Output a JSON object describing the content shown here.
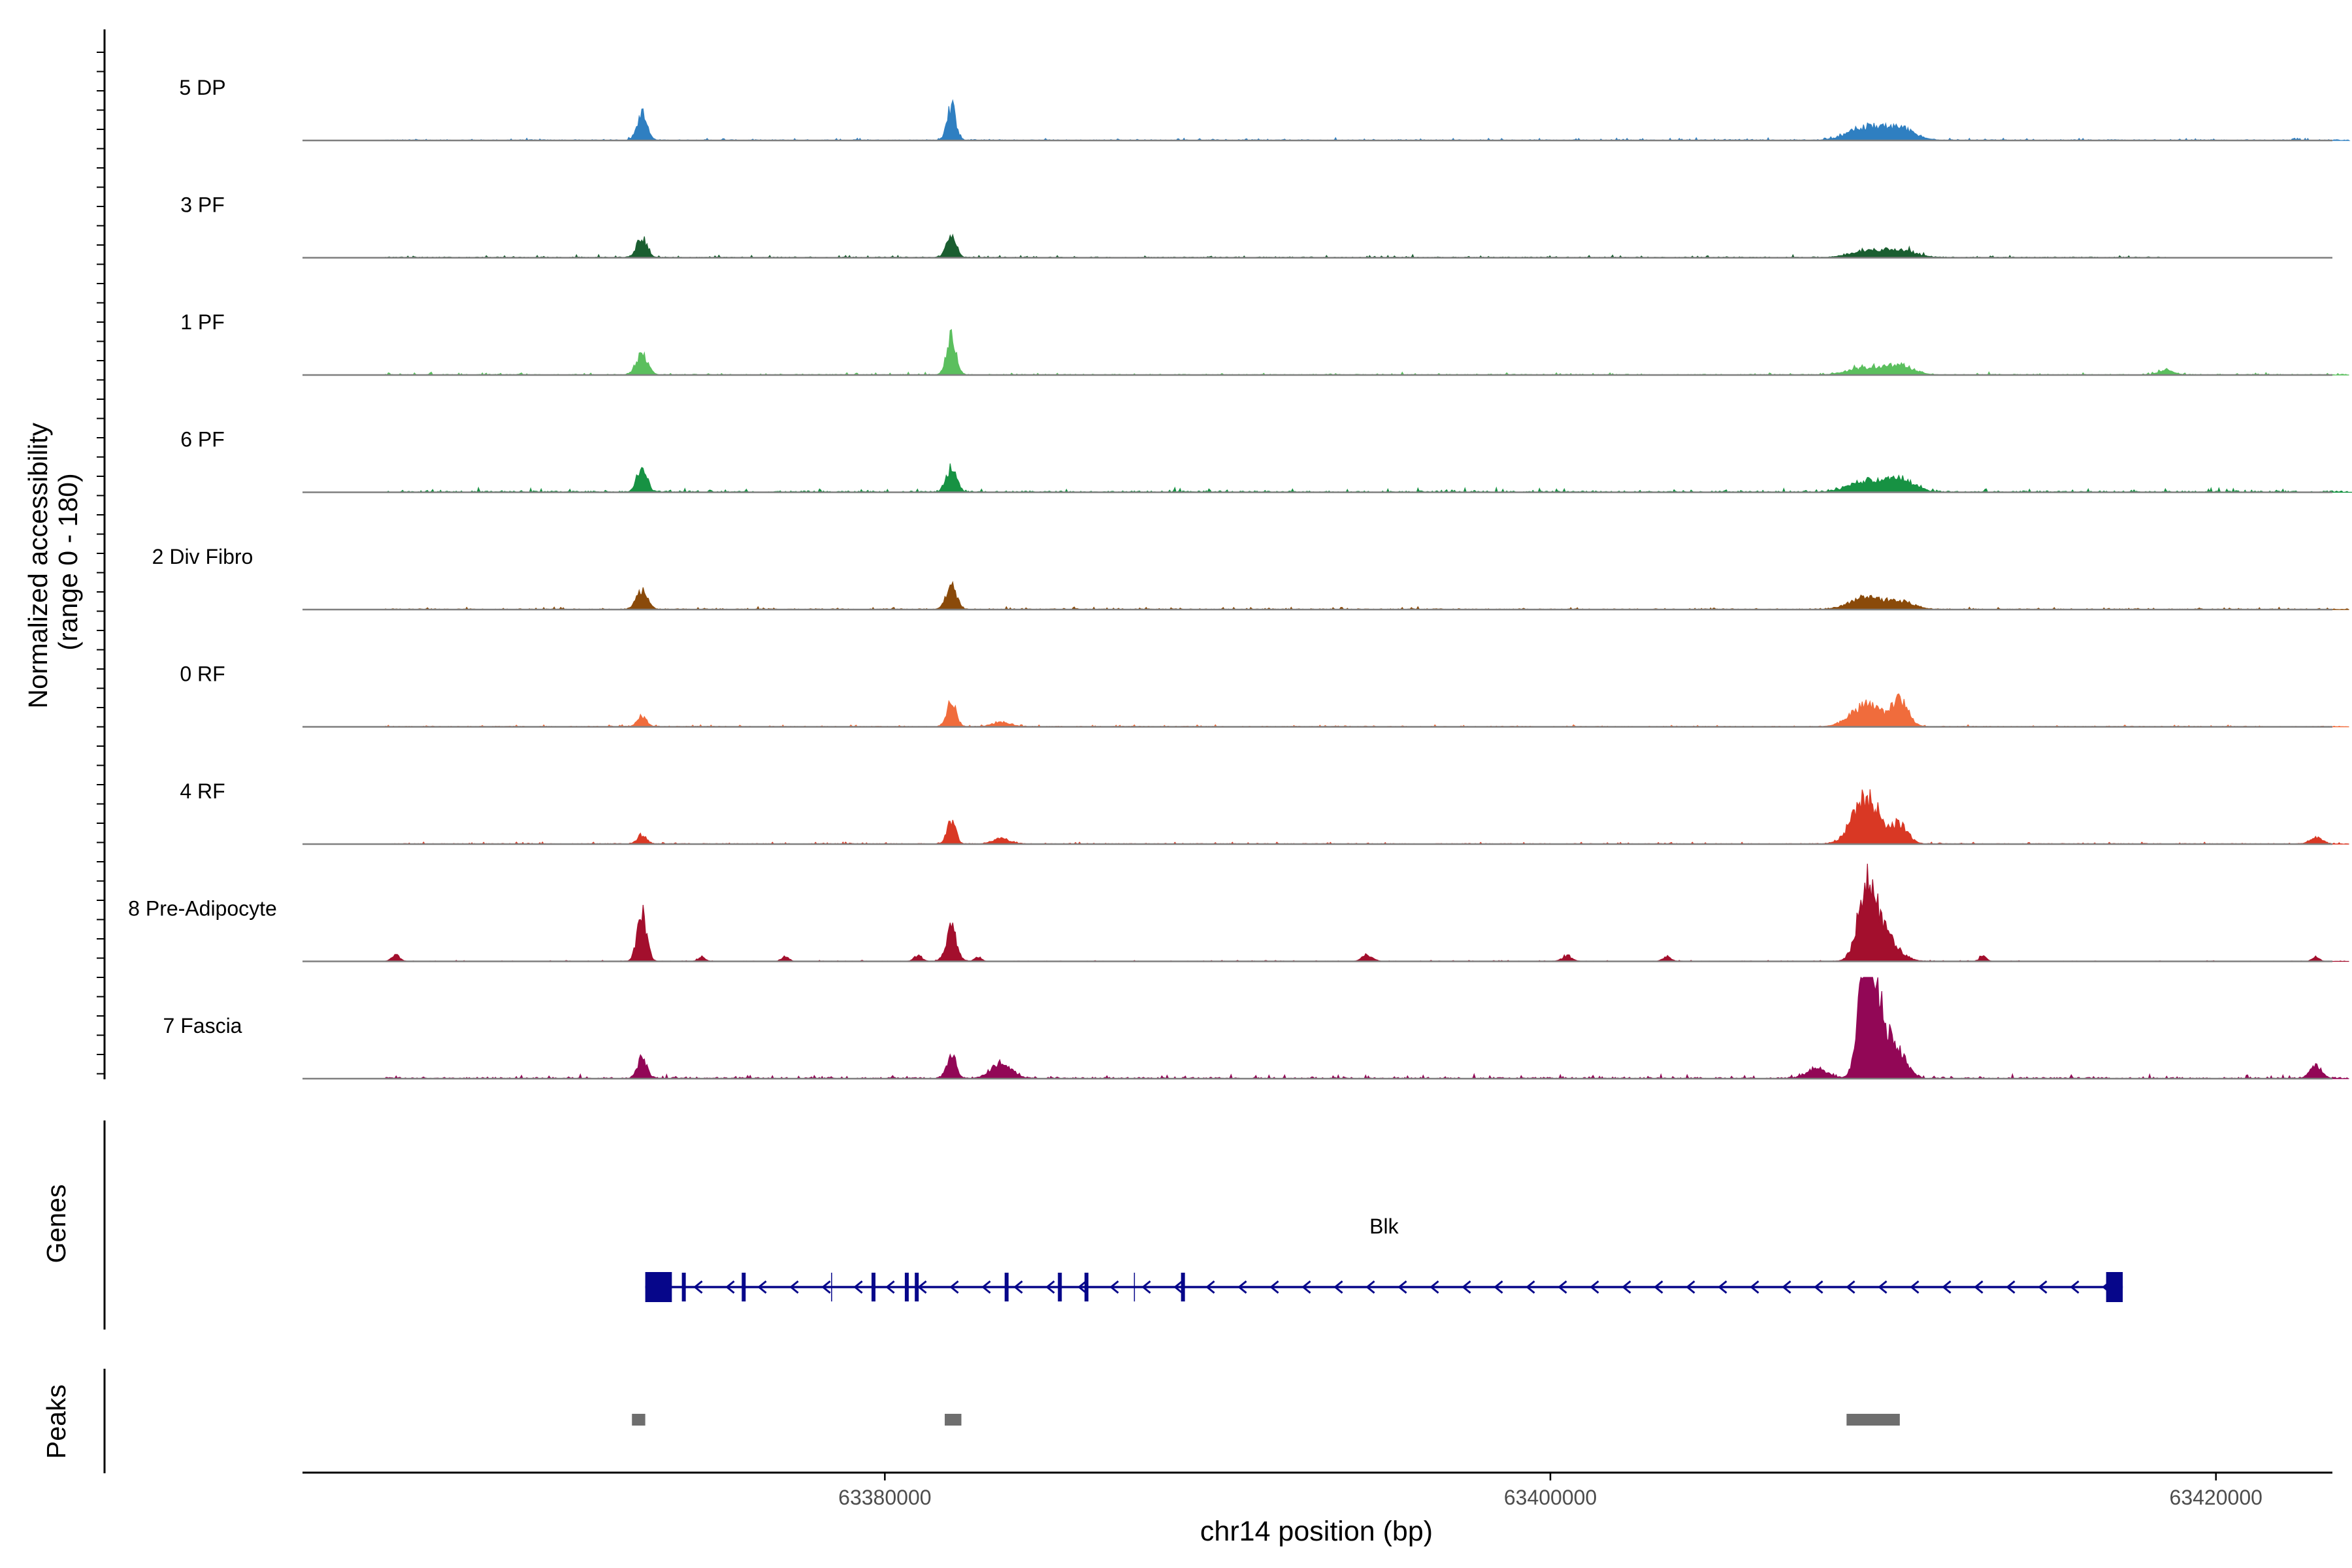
{
  "chart_data": {
    "type": "area",
    "title": "",
    "ylabel_line1": "Normalized accessibility",
    "ylabel_line2": "(range 0 - 180)",
    "ylim": [
      0,
      180
    ],
    "xlabel": "chr14 position (bp)",
    "xlim": [
      63362500,
      63423500
    ],
    "xticks": [
      63380000,
      63400000,
      63420000
    ],
    "xtick_labels": [
      "63380000",
      "63400000",
      "63420000"
    ],
    "track_labels": {
      "genes": "Genes",
      "peaks": "Peaks"
    },
    "tracks": [
      {
        "name": "5 DP",
        "color": "#2f7fc1",
        "noise": 1.5,
        "extent": [
          63365000,
          63424000
        ],
        "peaks": [
          [
            63372700,
            48,
            150
          ],
          [
            63382000,
            62,
            130
          ],
          [
            63409500,
            24,
            500
          ],
          [
            63410500,
            20,
            450
          ]
        ]
      },
      {
        "name": "3 PF",
        "color": "#1a5e30",
        "noise": 1.5,
        "extent": [
          63365000,
          63418500
        ],
        "peaks": [
          [
            63372700,
            36,
            150
          ],
          [
            63382000,
            46,
            140
          ],
          [
            63409500,
            12,
            500
          ],
          [
            63410500,
            14,
            450
          ]
        ]
      },
      {
        "name": "1 PF",
        "color": "#5bbf5e",
        "noise": 1.5,
        "extent": [
          63365000,
          63424000
        ],
        "peaks": [
          [
            63372700,
            38,
            170
          ],
          [
            63382000,
            72,
            140
          ],
          [
            63409500,
            13,
            500
          ],
          [
            63410500,
            17,
            400
          ],
          [
            63418500,
            9,
            220
          ]
        ]
      },
      {
        "name": "6 PF",
        "color": "#179243",
        "noise": 2.5,
        "extent": [
          63365000,
          63424500
        ],
        "peaks": [
          [
            63372700,
            43,
            150
          ],
          [
            63382000,
            46,
            150
          ],
          [
            63409500,
            20,
            500
          ],
          [
            63410500,
            24,
            400
          ]
        ]
      },
      {
        "name": "2 Div Fibro",
        "color": "#8a4a0a",
        "noise": 1.5,
        "extent": [
          63365000,
          63424000
        ],
        "peaks": [
          [
            63372700,
            38,
            160
          ],
          [
            63382000,
            48,
            150
          ],
          [
            63409500,
            22,
            480
          ],
          [
            63410500,
            14,
            400
          ]
        ]
      },
      {
        "name": "0 RF",
        "color": "#f06c3c",
        "noise": 1.2,
        "extent": [
          63365000,
          63424000
        ],
        "peaks": [
          [
            63372700,
            20,
            140
          ],
          [
            63382000,
            46,
            140
          ],
          [
            63383500,
            9,
            250
          ],
          [
            63409500,
            40,
            450
          ],
          [
            63410500,
            46,
            250
          ]
        ]
      },
      {
        "name": "4 RF",
        "color": "#d93824",
        "noise": 1.2,
        "extent": [
          63365000,
          63424000
        ],
        "peaks": [
          [
            63372700,
            17,
            140
          ],
          [
            63382000,
            43,
            130
          ],
          [
            63383500,
            10,
            250
          ],
          [
            63409500,
            86,
            400
          ],
          [
            63410500,
            33,
            250
          ],
          [
            63423000,
            12,
            180
          ]
        ]
      },
      {
        "name": "8 Pre-Adipocyte",
        "color": "#a30f2d",
        "noise": 0.6,
        "extent": [
          63365000,
          63424000
        ],
        "peaks": [
          [
            63372700,
            90,
            140
          ],
          [
            63382000,
            62,
            160
          ],
          [
            63409500,
            126,
            260
          ],
          [
            63410000,
            52,
            400
          ],
          [
            63365300,
            12,
            120
          ],
          [
            63374500,
            9,
            100
          ],
          [
            63377000,
            9,
            100
          ],
          [
            63381000,
            10,
            120
          ],
          [
            63382800,
            8,
            100
          ],
          [
            63394500,
            12,
            150
          ],
          [
            63400500,
            10,
            150
          ],
          [
            63403500,
            9,
            120
          ],
          [
            63413000,
            10,
            100
          ],
          [
            63423000,
            9,
            100
          ]
        ]
      },
      {
        "name": "7 Fascia",
        "color": "#920756",
        "noise": 2.5,
        "extent": [
          63365000,
          63424000
        ],
        "peaks": [
          [
            63372700,
            38,
            140
          ],
          [
            63382000,
            44,
            140
          ],
          [
            63383500,
            30,
            300
          ],
          [
            63409500,
            178,
            220
          ],
          [
            63409800,
            130,
            320
          ],
          [
            63410500,
            40,
            250
          ],
          [
            63408000,
            18,
            300
          ],
          [
            63423000,
            22,
            180
          ]
        ]
      }
    ],
    "gene": {
      "name": "Blk",
      "start": 63372800,
      "end": 63417200,
      "strand": "-",
      "color": "#06068a",
      "exons": [
        [
          63372800,
          63373600,
          "big"
        ],
        [
          63416700,
          63417200,
          "big"
        ],
        [
          63373900,
          63374000,
          "small"
        ],
        [
          63375700,
          63375800,
          "small"
        ],
        [
          63379600,
          63379700,
          "small"
        ],
        [
          63380600,
          63380700,
          "small"
        ],
        [
          63380900,
          63381000,
          "small"
        ],
        [
          63383600,
          63383700,
          "small"
        ],
        [
          63385200,
          63385300,
          "small"
        ],
        [
          63386000,
          63386100,
          "small"
        ],
        [
          63388900,
          63389000,
          "small"
        ]
      ],
      "thin_marks": [
        63378400,
        63387500
      ]
    },
    "peaks_track": [
      [
        63372400,
        63372800
      ],
      [
        63381800,
        63382300
      ],
      [
        63408900,
        63410500
      ]
    ]
  }
}
